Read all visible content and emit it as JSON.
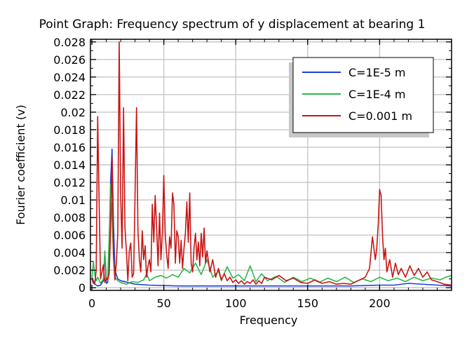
{
  "chart_data": {
    "type": "line",
    "title": "Point Graph: Frequency spectrum of y displacement at bearing 1",
    "xlabel": "Frequency",
    "ylabel": "Fourier coefficient (v)",
    "xlim": [
      -1,
      250
    ],
    "ylim": [
      -0.0003,
      0.0283
    ],
    "x_ticks": [
      0,
      50,
      100,
      150,
      200
    ],
    "y_ticks": [
      0,
      0.002,
      0.004,
      0.006,
      0.008,
      0.01,
      0.012,
      0.014,
      0.016,
      0.018,
      0.02,
      0.022,
      0.024,
      0.026,
      0.028
    ],
    "y_tick_labels": [
      "0",
      "0.002",
      "0.004",
      "0.006",
      "0.008",
      "0.01",
      "0.012",
      "0.014",
      "0.016",
      "0.018",
      "0.02",
      "0.022",
      "0.024",
      "0.026",
      "0.028"
    ],
    "grid": true,
    "legend_position": "top-right",
    "series": [
      {
        "name": "C=1E-5 m",
        "color": "#1f3fd8",
        "x": [
          0,
          2,
          4,
          6,
          8,
          9,
          10,
          11,
          12,
          13,
          14,
          15,
          16,
          18,
          20,
          25,
          30,
          40,
          60,
          80,
          100,
          120,
          140,
          160,
          180,
          200,
          210,
          220,
          240,
          250
        ],
        "y": [
          0.0012,
          0.0004,
          0.0002,
          0.0003,
          0.0008,
          0.004,
          0.0005,
          0.0006,
          0.004,
          0.012,
          0.0158,
          0.0075,
          0.002,
          0.001,
          0.0008,
          0.0006,
          0.0004,
          0.0003,
          0.0002,
          0.0002,
          0.0002,
          0.0002,
          0.0002,
          0.0002,
          0.0002,
          0.0003,
          0.0003,
          0.0005,
          0.0003,
          0.0002
        ]
      },
      {
        "name": "C=1E-4 m",
        "color": "#2db84a",
        "x": [
          0,
          1,
          2,
          3,
          4,
          6,
          8,
          9,
          10,
          11,
          12,
          13,
          14,
          15,
          16,
          18,
          20,
          24,
          28,
          32,
          36,
          38,
          40,
          44,
          48,
          52,
          56,
          60,
          64,
          68,
          72,
          76,
          80,
          84,
          88,
          90,
          94,
          98,
          102,
          106,
          110,
          114,
          118,
          122,
          128,
          134,
          140,
          146,
          152,
          158,
          164,
          170,
          176,
          182,
          188,
          194,
          200,
          206,
          212,
          218,
          224,
          230,
          236,
          242,
          246,
          250
        ],
        "y": [
          0.001,
          0.003,
          0.0015,
          0.0008,
          0.0012,
          0.0005,
          0.001,
          0.0042,
          0.0012,
          0.0009,
          0.0058,
          0.0118,
          0.008,
          0.0038,
          0.0012,
          0.0008,
          0.0006,
          0.0004,
          0.0007,
          0.0006,
          0.0009,
          0.0016,
          0.0008,
          0.0012,
          0.0014,
          0.0011,
          0.0015,
          0.0012,
          0.0022,
          0.0017,
          0.0028,
          0.0015,
          0.0032,
          0.0012,
          0.0019,
          0.0008,
          0.0024,
          0.0011,
          0.0015,
          0.0008,
          0.0025,
          0.0007,
          0.0016,
          0.0008,
          0.0013,
          0.0006,
          0.0012,
          0.0007,
          0.0011,
          0.0006,
          0.0011,
          0.0007,
          0.0012,
          0.0006,
          0.001,
          0.0007,
          0.0012,
          0.0008,
          0.0011,
          0.0007,
          0.0012,
          0.0008,
          0.0011,
          0.0009,
          0.0012,
          0.0014
        ]
      },
      {
        "name": "C=0.001 m",
        "color": "#c81414",
        "x": [
          0,
          1,
          2,
          3,
          4,
          5,
          6,
          7,
          8,
          9,
          10,
          11,
          12,
          13,
          14,
          15,
          16,
          17,
          18,
          19,
          20,
          21,
          22,
          23,
          24,
          25,
          26,
          27,
          28,
          29,
          30,
          31,
          32,
          33,
          34,
          35,
          36,
          37,
          38,
          39,
          40,
          41,
          42,
          43,
          44,
          45,
          46,
          47,
          48,
          49,
          50,
          51,
          52,
          53,
          54,
          55,
          56,
          57,
          58,
          59,
          60,
          61,
          62,
          63,
          64,
          65,
          66,
          67,
          68,
          69,
          70,
          71,
          72,
          73,
          74,
          75,
          76,
          77,
          78,
          79,
          80,
          82,
          84,
          86,
          88,
          90,
          92,
          94,
          96,
          98,
          100,
          102,
          104,
          106,
          108,
          110,
          112,
          114,
          116,
          118,
          120,
          125,
          130,
          135,
          140,
          145,
          150,
          155,
          160,
          165,
          170,
          175,
          180,
          185,
          190,
          193,
          195,
          197,
          198,
          199,
          200,
          201,
          202,
          203,
          204,
          205,
          207,
          209,
          211,
          213,
          215,
          218,
          221,
          224,
          227,
          230,
          233,
          236,
          240,
          245,
          250
        ],
        "y": [
          0.001,
          0.0005,
          0.0005,
          0.002,
          0.0195,
          0.01,
          0.001,
          0.0018,
          0.0026,
          0.0006,
          0.0011,
          0.0009,
          0.0016,
          0.0065,
          0.0148,
          0.0035,
          0.0009,
          0.0028,
          0.0062,
          0.028,
          0.0105,
          0.0045,
          0.0205,
          0.0068,
          0.0042,
          0.0008,
          0.0042,
          0.0051,
          0.0012,
          0.0016,
          0.0105,
          0.0205,
          0.0066,
          0.0032,
          0.0018,
          0.0065,
          0.0032,
          0.0048,
          0.0012,
          0.0025,
          0.0032,
          0.0018,
          0.0095,
          0.0052,
          0.0105,
          0.0068,
          0.0025,
          0.0085,
          0.0032,
          0.0062,
          0.0128,
          0.006,
          0.0038,
          0.0022,
          0.0058,
          0.0045,
          0.0108,
          0.0095,
          0.0028,
          0.0065,
          0.0058,
          0.0028,
          0.0054,
          0.0022,
          0.0045,
          0.0062,
          0.0098,
          0.0052,
          0.0108,
          0.0028,
          0.0018,
          0.0045,
          0.0062,
          0.0032,
          0.0052,
          0.0025,
          0.0062,
          0.0035,
          0.0068,
          0.0028,
          0.0042,
          0.0018,
          0.0032,
          0.0012,
          0.0022,
          0.0009,
          0.0016,
          0.0008,
          0.0012,
          0.0006,
          0.0009,
          0.0005,
          0.0008,
          0.0004,
          0.0007,
          0.0005,
          0.0009,
          0.0004,
          0.0008,
          0.0005,
          0.0012,
          0.0009,
          0.0014,
          0.0008,
          0.0011,
          0.0006,
          0.0005,
          0.0009,
          0.0005,
          0.0007,
          0.0004,
          0.0005,
          0.0004,
          0.0008,
          0.0012,
          0.0022,
          0.0058,
          0.0032,
          0.0045,
          0.0072,
          0.0112,
          0.0105,
          0.006,
          0.0032,
          0.0045,
          0.0018,
          0.0032,
          0.0012,
          0.0028,
          0.0015,
          0.0022,
          0.0012,
          0.0025,
          0.0014,
          0.0022,
          0.0012,
          0.0018,
          0.0009,
          0.0007,
          0.0004,
          0.0003
        ]
      }
    ]
  }
}
